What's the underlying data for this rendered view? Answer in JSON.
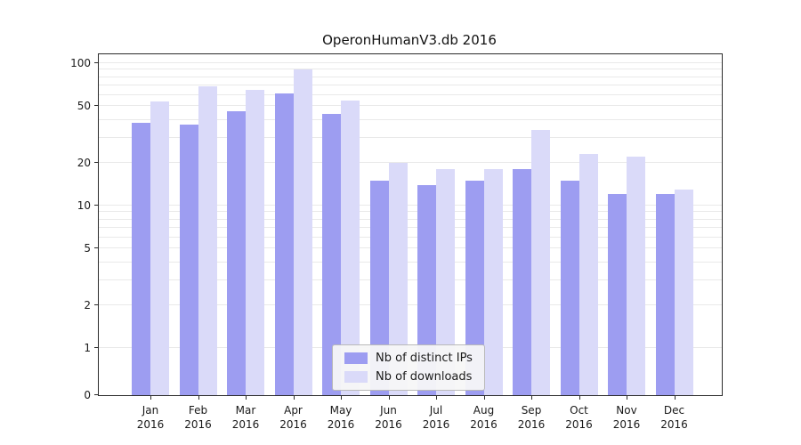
{
  "chart_data": {
    "type": "bar",
    "title": "OperonHumanV3.db 2016",
    "categories": [
      "Jan 2016",
      "Feb 2016",
      "Mar 2016",
      "Apr 2016",
      "May 2016",
      "Jun 2016",
      "Jul 2016",
      "Aug 2016",
      "Sep 2016",
      "Oct 2016",
      "Nov 2016",
      "Dec 2016"
    ],
    "series": [
      {
        "name": "Nb of distinct IPs",
        "color": "#9d9df1",
        "values": [
          38,
          37,
          46,
          61,
          44,
          15,
          14,
          15,
          18,
          15,
          12,
          12
        ]
      },
      {
        "name": "Nb of downloads",
        "color": "#dadaf9",
        "values": [
          54,
          69,
          65,
          91,
          55,
          20,
          18,
          18,
          34,
          23,
          22,
          13
        ]
      }
    ],
    "yscale": "symlog",
    "ytick_labels": [
      100,
      50,
      20,
      10,
      5,
      2,
      1,
      0
    ],
    "ylim": [
      0,
      100
    ],
    "grid": "horizontal-minor-log",
    "legend_position": "lower center"
  }
}
